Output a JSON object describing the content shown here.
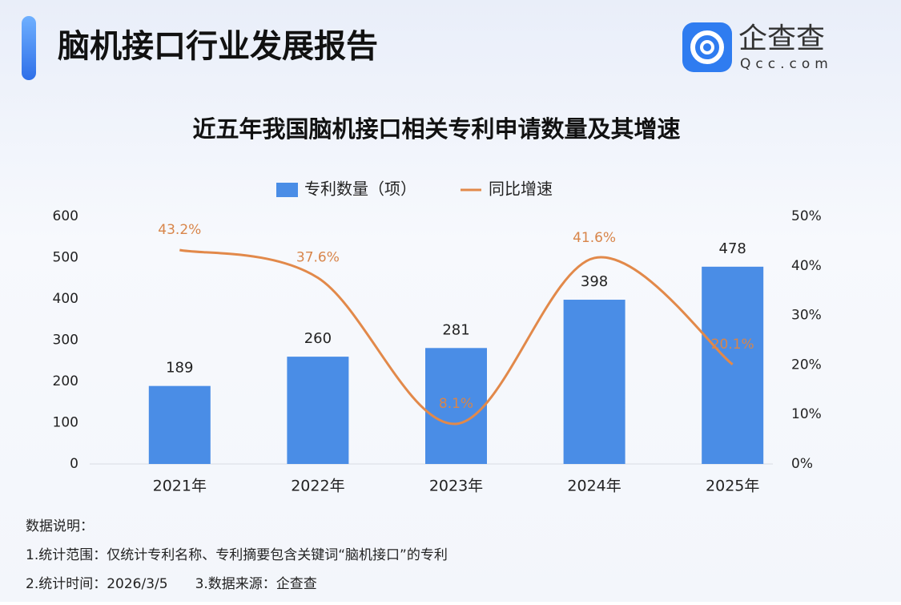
{
  "header": {
    "title": "脑机接口行业发展报告",
    "logo_name": "企查查",
    "logo_sub": "Qcc.com"
  },
  "chart_data": {
    "type": "bar",
    "title": "近五年我国脑机接口相关专利申请数量及其增速",
    "categories": [
      "2021年",
      "2022年",
      "2023年",
      "2024年",
      "2025年"
    ],
    "series": [
      {
        "name": "专利数量（项）",
        "type": "bar",
        "color": "#4a8de6",
        "values": [
          189,
          260,
          281,
          398,
          478
        ]
      },
      {
        "name": "同比增速",
        "type": "line",
        "axis": "y2",
        "color": "#e2894a",
        "values": [
          43.2,
          37.6,
          8.1,
          41.6,
          20.1
        ],
        "value_labels": [
          "43.2%",
          "37.6%",
          "8.1%",
          "41.6%",
          "20.1%"
        ]
      }
    ],
    "ylim": [
      0,
      600
    ],
    "yticks": [
      0,
      100,
      200,
      300,
      400,
      500,
      600
    ],
    "y2lim": [
      0,
      50
    ],
    "y2ticks": [
      {
        "value": 0,
        "label": "0%"
      },
      {
        "value": 10,
        "label": "10%"
      },
      {
        "value": 20,
        "label": "20%"
      },
      {
        "value": 30,
        "label": "30%"
      },
      {
        "value": 40,
        "label": "40%"
      },
      {
        "value": 50,
        "label": "50%"
      }
    ],
    "grid": false,
    "legend": "top"
  },
  "notes": {
    "heading": "数据说明：",
    "lines": [
      "1.统计范围：仅统计专利名称、专利摘要包含关键词“脑机接口”的专利",
      "2.统计时间：2026/3/5　　3.数据来源：企查查"
    ]
  }
}
